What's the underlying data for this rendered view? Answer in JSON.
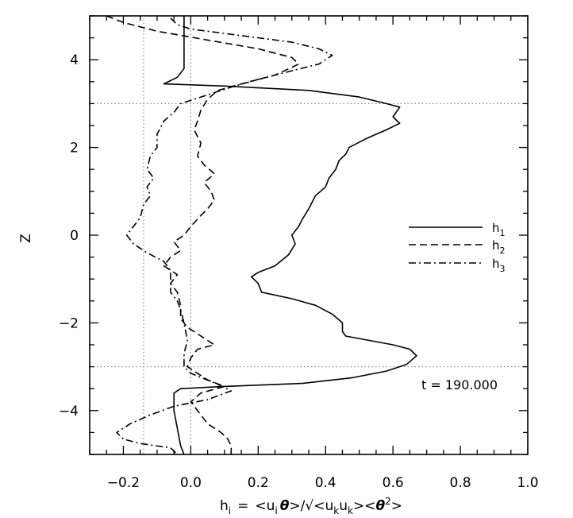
{
  "chart_data": {
    "type": "line",
    "xlabel": "h_i = <u_i θ>/√<u_k u_k><θ^2>",
    "xlabel_parts": {
      "lhs": "h",
      "lhs_sub": "i",
      "eq": "=",
      "open": "<u",
      "sub_i": "i",
      "theta": "θ",
      "close_slash": ">/√<u",
      "sub_k1": "k",
      "u2": "u",
      "sub_k2": "k",
      "mid": "><",
      "theta2": "θ",
      "sup2": "2",
      "end": ">"
    },
    "ylabel": "Z",
    "xlim": [
      -0.3,
      1.0
    ],
    "ylim": [
      -5.0,
      5.0
    ],
    "x_ticks": [
      -0.2,
      0.0,
      0.2,
      0.4,
      0.6,
      0.8,
      1.0
    ],
    "x_tick_labels": [
      "−0.2",
      "0.0",
      "0.2",
      "0.4",
      "0.6",
      "0.8",
      "1.0"
    ],
    "y_ticks": [
      -4,
      -2,
      0,
      2,
      4
    ],
    "y_tick_labels": [
      "−4",
      "−2",
      "0",
      "2",
      "4"
    ],
    "grid": false,
    "reference_lines": {
      "vertical_x": [
        -0.14,
        0.0
      ],
      "horizontal_y": [
        3.0,
        -3.0
      ],
      "style": "dotted"
    },
    "annotation": "t = 190.000",
    "legend": {
      "placement": "right",
      "entries": [
        {
          "name": "h",
          "sub": "1",
          "dash": "solid"
        },
        {
          "name": "h",
          "sub": "2",
          "dash": "dashed"
        },
        {
          "name": "h",
          "sub": "3",
          "dash": "dashdot"
        }
      ]
    },
    "series": [
      {
        "name": "h1",
        "dash": "solid",
        "points": [
          [
            -0.02,
            5.0
          ],
          [
            -0.02,
            4.7
          ],
          [
            -0.02,
            4.4
          ],
          [
            -0.02,
            4.0
          ],
          [
            -0.02,
            3.8
          ],
          [
            -0.04,
            3.6
          ],
          [
            -0.08,
            3.45
          ],
          [
            0.1,
            3.4
          ],
          [
            0.35,
            3.3
          ],
          [
            0.5,
            3.15
          ],
          [
            0.58,
            3.0
          ],
          [
            0.62,
            2.92
          ],
          [
            0.6,
            2.7
          ],
          [
            0.62,
            2.55
          ],
          [
            0.58,
            2.4
          ],
          [
            0.55,
            2.3
          ],
          [
            0.52,
            2.2
          ],
          [
            0.47,
            2.0
          ],
          [
            0.46,
            1.85
          ],
          [
            0.44,
            1.7
          ],
          [
            0.43,
            1.5
          ],
          [
            0.41,
            1.3
          ],
          [
            0.4,
            1.1
          ],
          [
            0.37,
            0.9
          ],
          [
            0.35,
            0.6
          ],
          [
            0.33,
            0.35
          ],
          [
            0.32,
            0.2
          ],
          [
            0.3,
            0.0
          ],
          [
            0.31,
            -0.2
          ],
          [
            0.29,
            -0.45
          ],
          [
            0.25,
            -0.7
          ],
          [
            0.2,
            -0.85
          ],
          [
            0.18,
            -0.95
          ],
          [
            0.2,
            -1.1
          ],
          [
            0.21,
            -1.3
          ],
          [
            0.3,
            -1.45
          ],
          [
            0.37,
            -1.6
          ],
          [
            0.42,
            -1.8
          ],
          [
            0.45,
            -2.0
          ],
          [
            0.45,
            -2.2
          ],
          [
            0.46,
            -2.3
          ],
          [
            0.53,
            -2.4
          ],
          [
            0.6,
            -2.5
          ],
          [
            0.65,
            -2.6
          ],
          [
            0.67,
            -2.75
          ],
          [
            0.64,
            -2.95
          ],
          [
            0.58,
            -3.1
          ],
          [
            0.48,
            -3.25
          ],
          [
            0.33,
            -3.38
          ],
          [
            0.1,
            -3.45
          ],
          [
            -0.03,
            -3.5
          ],
          [
            -0.05,
            -3.6
          ],
          [
            -0.05,
            -4.0
          ],
          [
            -0.04,
            -4.4
          ],
          [
            -0.03,
            -4.8
          ],
          [
            -0.02,
            -5.0
          ]
        ]
      },
      {
        "name": "h2",
        "dash": "dashed",
        "points": [
          [
            -0.25,
            5.0
          ],
          [
            -0.2,
            4.85
          ],
          [
            -0.1,
            4.65
          ],
          [
            0.05,
            4.45
          ],
          [
            0.2,
            4.25
          ],
          [
            0.3,
            4.05
          ],
          [
            0.32,
            3.9
          ],
          [
            0.25,
            3.65
          ],
          [
            0.15,
            3.45
          ],
          [
            0.08,
            3.3
          ],
          [
            0.05,
            3.1
          ],
          [
            0.03,
            2.85
          ],
          [
            0.02,
            2.6
          ],
          [
            0.01,
            2.4
          ],
          [
            0.03,
            2.1
          ],
          [
            0.02,
            1.8
          ],
          [
            0.04,
            1.6
          ],
          [
            0.07,
            1.4
          ],
          [
            0.04,
            1.2
          ],
          [
            0.06,
            1.0
          ],
          [
            0.07,
            0.8
          ],
          [
            0.05,
            0.6
          ],
          [
            0.03,
            0.45
          ],
          [
            0.0,
            0.2
          ],
          [
            -0.02,
            0.0
          ],
          [
            -0.05,
            -0.15
          ],
          [
            -0.03,
            -0.35
          ],
          [
            -0.06,
            -0.5
          ],
          [
            -0.08,
            -0.7
          ],
          [
            -0.04,
            -0.9
          ],
          [
            -0.06,
            -1.1
          ],
          [
            -0.04,
            -1.3
          ],
          [
            -0.03,
            -1.6
          ],
          [
            -0.03,
            -1.9
          ],
          [
            -0.01,
            -2.1
          ],
          [
            0.02,
            -2.25
          ],
          [
            0.05,
            -2.4
          ],
          [
            0.07,
            -2.5
          ],
          [
            0.02,
            -2.6
          ],
          [
            0.0,
            -2.8
          ],
          [
            -0.01,
            -3.0
          ],
          [
            0.02,
            -3.15
          ],
          [
            0.05,
            -3.3
          ],
          [
            0.1,
            -3.45
          ],
          [
            0.03,
            -3.6
          ],
          [
            0.0,
            -3.8
          ],
          [
            0.03,
            -4.1
          ],
          [
            0.05,
            -4.3
          ],
          [
            0.09,
            -4.5
          ],
          [
            0.11,
            -4.65
          ],
          [
            0.12,
            -4.8
          ],
          [
            0.12,
            -5.0
          ]
        ]
      },
      {
        "name": "h3",
        "dash": "dashdot",
        "points": [
          [
            -0.06,
            4.95
          ],
          [
            -0.04,
            4.8
          ],
          [
            0.0,
            4.7
          ],
          [
            0.15,
            4.55
          ],
          [
            0.3,
            4.4
          ],
          [
            0.38,
            4.25
          ],
          [
            0.42,
            4.1
          ],
          [
            0.38,
            3.9
          ],
          [
            0.3,
            3.75
          ],
          [
            0.2,
            3.55
          ],
          [
            0.13,
            3.4
          ],
          [
            0.05,
            3.2
          ],
          [
            -0.03,
            3.0
          ],
          [
            -0.05,
            2.8
          ],
          [
            -0.08,
            2.6
          ],
          [
            -0.1,
            2.3
          ],
          [
            -0.1,
            2.0
          ],
          [
            -0.12,
            1.8
          ],
          [
            -0.13,
            1.5
          ],
          [
            -0.11,
            1.3
          ],
          [
            -0.13,
            1.1
          ],
          [
            -0.12,
            0.9
          ],
          [
            -0.14,
            0.7
          ],
          [
            -0.15,
            0.4
          ],
          [
            -0.17,
            0.2
          ],
          [
            -0.19,
            0.0
          ],
          [
            -0.17,
            -0.2
          ],
          [
            -0.13,
            -0.4
          ],
          [
            -0.08,
            -0.6
          ],
          [
            -0.06,
            -0.8
          ],
          [
            -0.06,
            -1.0
          ],
          [
            -0.06,
            -1.3
          ],
          [
            -0.04,
            -1.5
          ],
          [
            -0.03,
            -1.7
          ],
          [
            -0.02,
            -2.0
          ],
          [
            -0.01,
            -2.4
          ],
          [
            -0.02,
            -2.7
          ],
          [
            -0.02,
            -3.0
          ],
          [
            0.0,
            -3.15
          ],
          [
            0.08,
            -3.4
          ],
          [
            0.12,
            -3.55
          ],
          [
            0.05,
            -3.75
          ],
          [
            -0.05,
            -3.9
          ],
          [
            -0.12,
            -4.1
          ],
          [
            -0.18,
            -4.3
          ],
          [
            -0.22,
            -4.5
          ],
          [
            -0.2,
            -4.65
          ],
          [
            -0.15,
            -4.75
          ],
          [
            -0.06,
            -4.85
          ],
          [
            -0.04,
            -5.0
          ]
        ]
      }
    ]
  }
}
